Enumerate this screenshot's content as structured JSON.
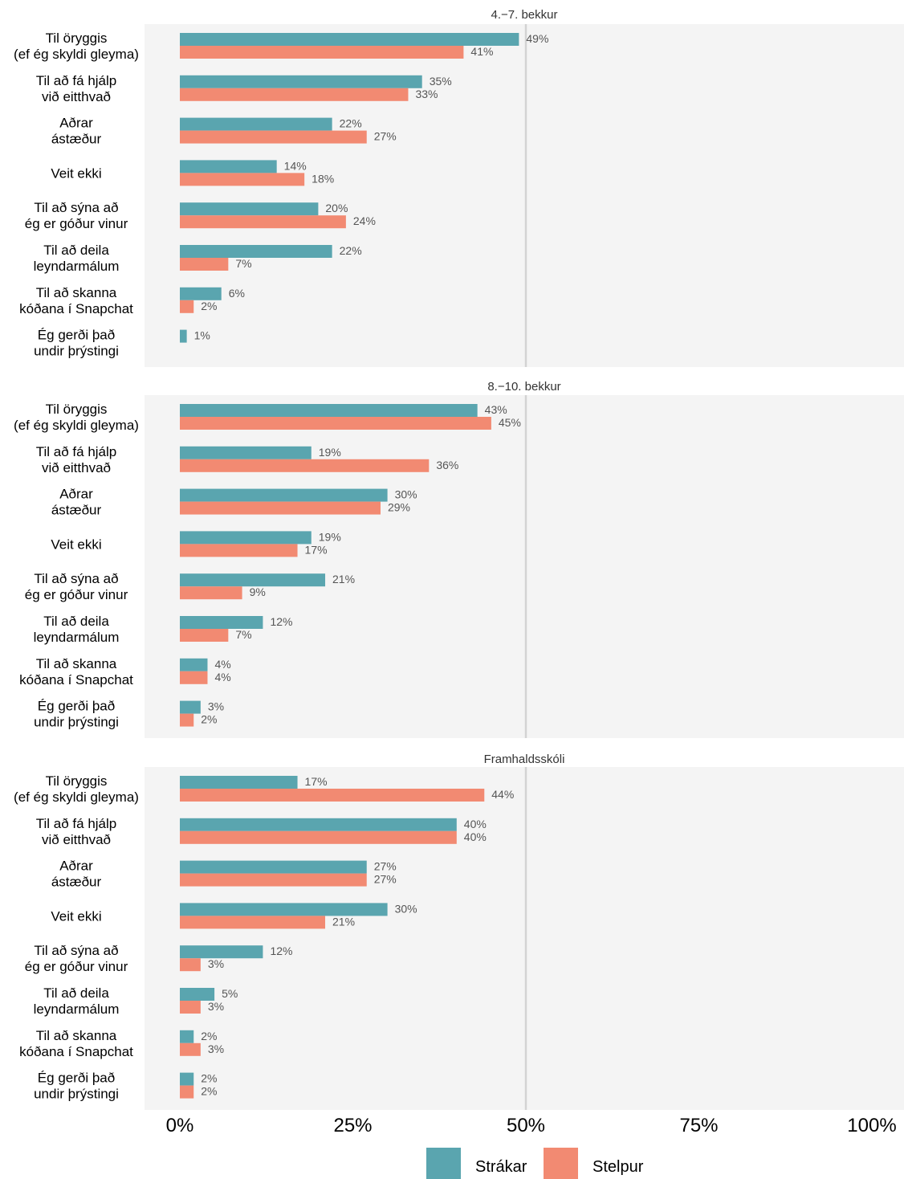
{
  "chart_data": {
    "type": "bar",
    "orientation": "horizontal",
    "categories": [
      "Til öryggis\n(ef ég skyldi gleyma)",
      "Til að fá hjálp\nvið eitthvað",
      "Aðrar\nástæður",
      "Veit ekki",
      "Til að sýna að\nég er góður vinur",
      "Til að deila\nleyndarmálum",
      "Til að skanna\nkóðana í Snapchat",
      "Ég gerði það\nundir þrýstingi"
    ],
    "x_ticks": [
      "0%",
      "25%",
      "50%",
      "75%",
      "100%"
    ],
    "xlim": [
      0,
      100
    ],
    "reference_line": 50,
    "legend_position": "bottom",
    "series_names": [
      "Strákar",
      "Stelpur"
    ],
    "colors": {
      "Strákar": "#5aa5af",
      "Stelpur": "#f28a72"
    },
    "panels": [
      {
        "title": "4.−7. bekkur",
        "series": [
          {
            "name": "Strákar",
            "values": [
              49,
              35,
              22,
              14,
              20,
              22,
              6,
              1
            ]
          },
          {
            "name": "Stelpur",
            "values": [
              41,
              33,
              27,
              18,
              24,
              7,
              2,
              null
            ]
          }
        ]
      },
      {
        "title": "8.−10. bekkur",
        "series": [
          {
            "name": "Strákar",
            "values": [
              43,
              19,
              30,
              19,
              21,
              12,
              4,
              3
            ]
          },
          {
            "name": "Stelpur",
            "values": [
              45,
              36,
              29,
              17,
              9,
              7,
              4,
              2
            ]
          }
        ]
      },
      {
        "title": "Framhaldsskóli",
        "series": [
          {
            "name": "Strákar",
            "values": [
              17,
              40,
              27,
              30,
              12,
              5,
              2,
              2
            ]
          },
          {
            "name": "Stelpur",
            "values": [
              44,
              40,
              27,
              21,
              3,
              3,
              3,
              2
            ]
          }
        ]
      }
    ]
  }
}
